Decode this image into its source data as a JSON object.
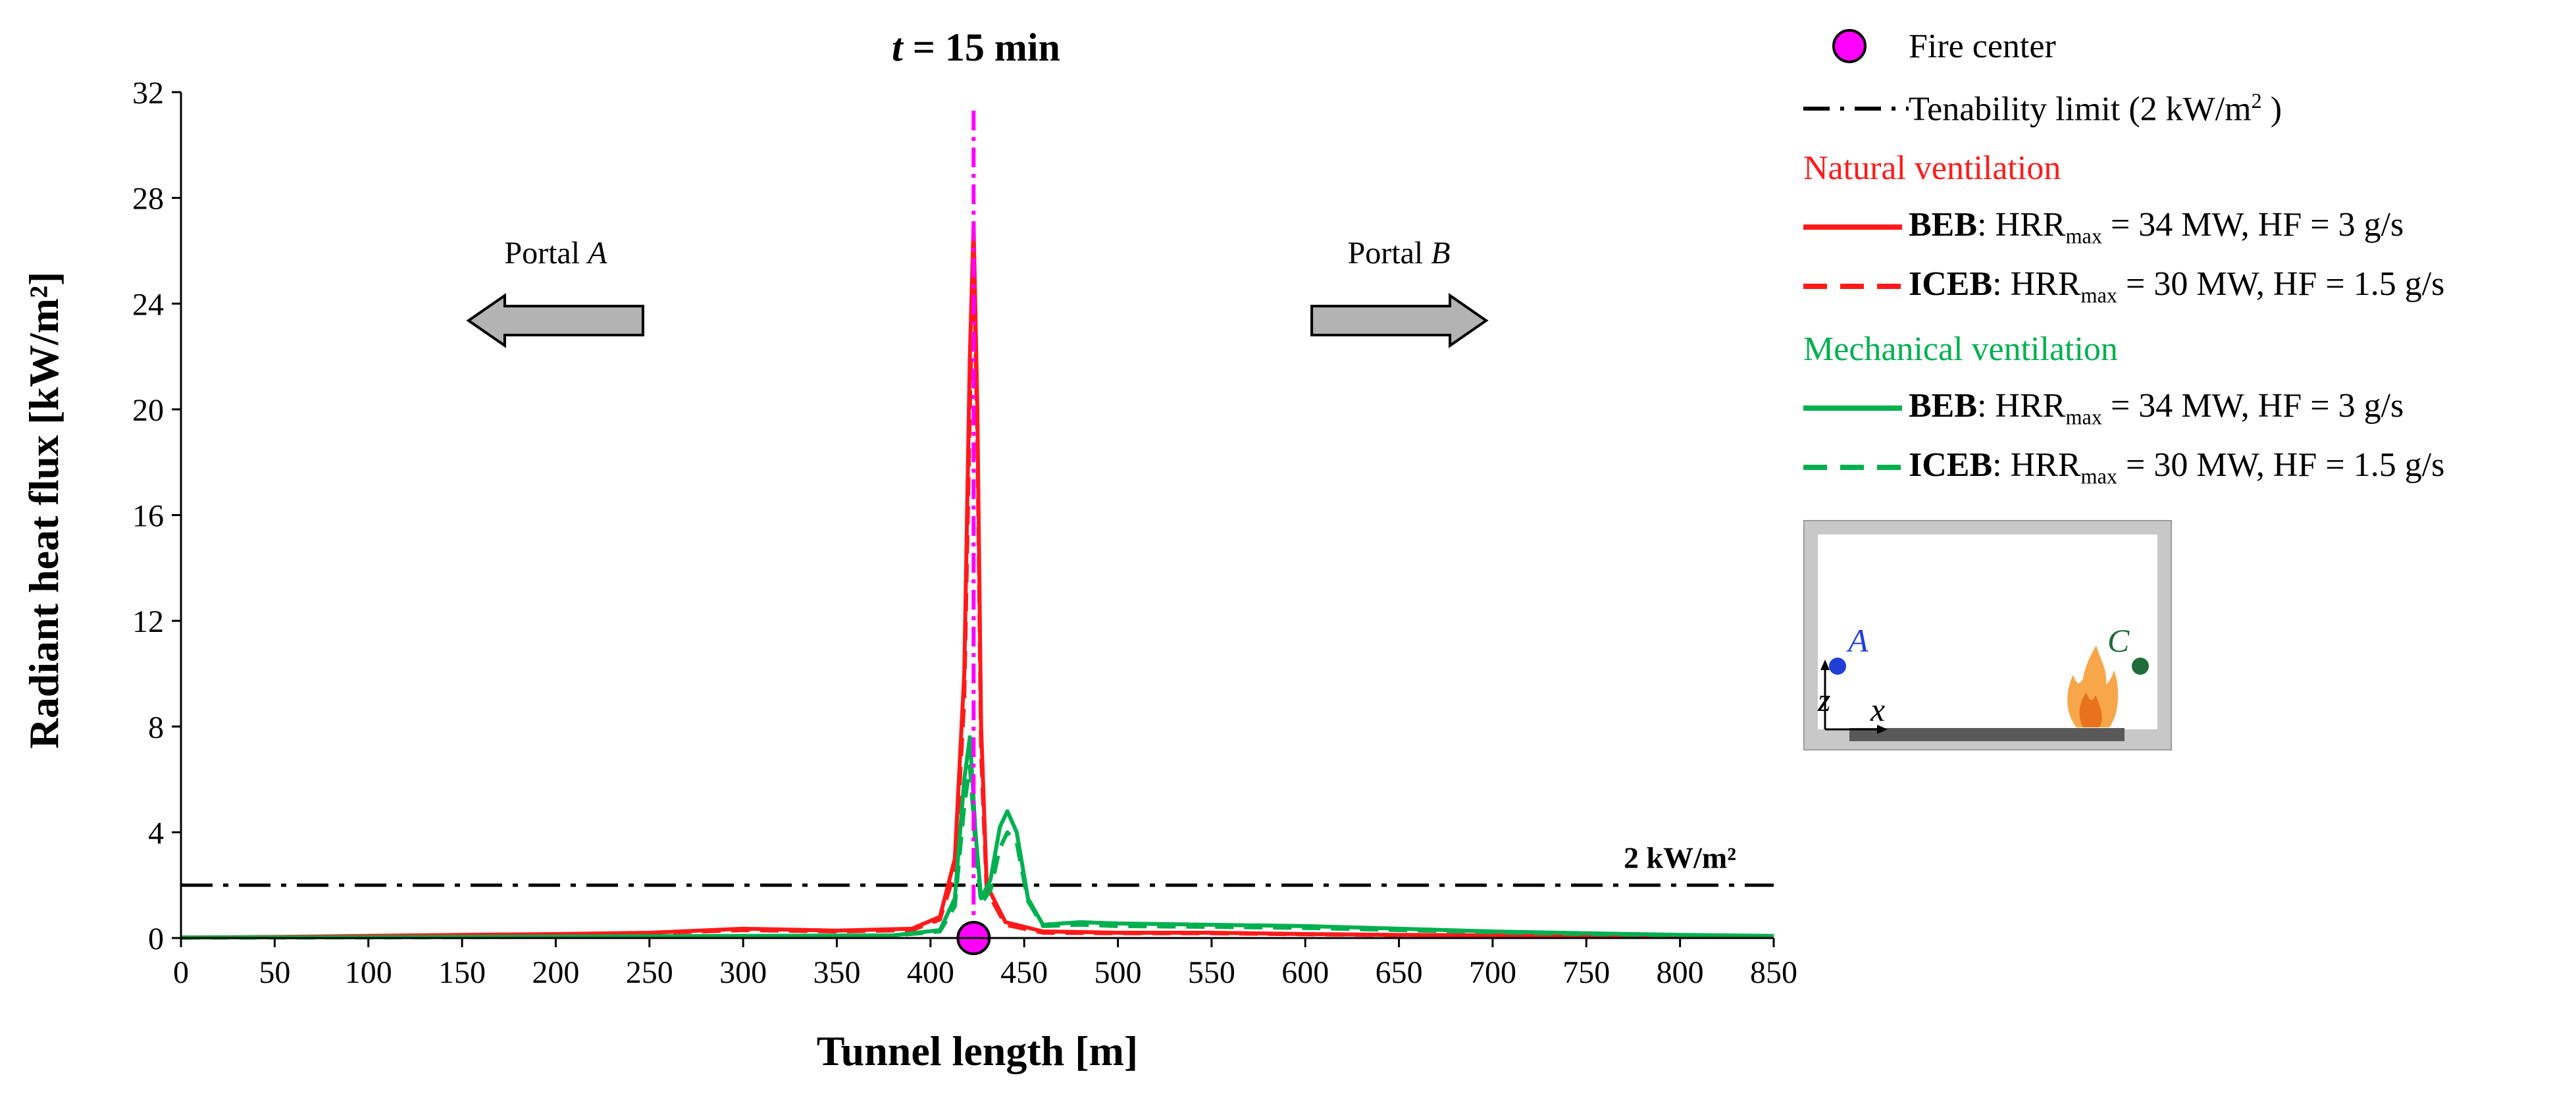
{
  "chart_data": {
    "type": "line",
    "title_italic": "t",
    "title_rest": " = 15 min",
    "xlabel": "Tunnel length [m]",
    "ylabel": "Radiant heat flux [kW/m²]",
    "xlim": [
      0,
      850
    ],
    "ylim": [
      0,
      32
    ],
    "xticks": [
      0,
      50,
      100,
      150,
      200,
      250,
      300,
      350,
      400,
      450,
      500,
      550,
      600,
      650,
      700,
      750,
      800,
      850
    ],
    "yticks": [
      0,
      4,
      8,
      12,
      16,
      20,
      24,
      28,
      32
    ],
    "tenability_limit": {
      "value": 2,
      "label": "2 kW/m²"
    },
    "fire_center": {
      "x": 423,
      "y": 0
    },
    "portals": [
      {
        "label": "Portal ",
        "italic": "A",
        "direction": "left",
        "x_center": 200
      },
      {
        "label": "Portal ",
        "italic": "B",
        "direction": "right",
        "x_center": 650
      }
    ],
    "series": [
      {
        "name": "Natural ventilation – BEB",
        "color": "#ff1a1a",
        "dash": "solid",
        "points": [
          [
            0,
            0.02
          ],
          [
            50,
            0.04
          ],
          [
            100,
            0.08
          ],
          [
            150,
            0.12
          ],
          [
            200,
            0.15
          ],
          [
            250,
            0.2
          ],
          [
            300,
            0.35
          ],
          [
            350,
            0.28
          ],
          [
            390,
            0.35
          ],
          [
            405,
            0.8
          ],
          [
            413,
            3
          ],
          [
            418,
            10
          ],
          [
            421,
            22
          ],
          [
            423,
            27
          ],
          [
            425,
            20
          ],
          [
            427,
            8
          ],
          [
            430,
            2
          ],
          [
            440,
            0.6
          ],
          [
            460,
            0.25
          ],
          [
            500,
            0.2
          ],
          [
            550,
            0.2
          ],
          [
            600,
            0.15
          ],
          [
            650,
            0.12
          ],
          [
            700,
            0.1
          ],
          [
            750,
            0.08
          ],
          [
            800,
            0.06
          ],
          [
            850,
            0.05
          ]
        ]
      },
      {
        "name": "Natural ventilation – ICEB",
        "color": "#ff1a1a",
        "dash": "dashed",
        "points": [
          [
            0,
            0.01
          ],
          [
            50,
            0.03
          ],
          [
            100,
            0.06
          ],
          [
            150,
            0.1
          ],
          [
            200,
            0.12
          ],
          [
            250,
            0.18
          ],
          [
            300,
            0.3
          ],
          [
            350,
            0.25
          ],
          [
            390,
            0.3
          ],
          [
            405,
            0.7
          ],
          [
            413,
            2.5
          ],
          [
            418,
            9
          ],
          [
            421,
            20
          ],
          [
            423,
            26
          ],
          [
            425,
            19
          ],
          [
            427,
            7
          ],
          [
            430,
            1.8
          ],
          [
            440,
            0.5
          ],
          [
            460,
            0.2
          ],
          [
            500,
            0.18
          ],
          [
            550,
            0.18
          ],
          [
            600,
            0.14
          ],
          [
            650,
            0.11
          ],
          [
            700,
            0.09
          ],
          [
            750,
            0.07
          ],
          [
            800,
            0.05
          ],
          [
            850,
            0.04
          ]
        ]
      },
      {
        "name": "Mechanical ventilation – BEB",
        "color": "#00b050",
        "dash": "solid",
        "points": [
          [
            0,
            0.02
          ],
          [
            100,
            0.03
          ],
          [
            200,
            0.05
          ],
          [
            300,
            0.08
          ],
          [
            380,
            0.1
          ],
          [
            405,
            0.3
          ],
          [
            413,
            1.5
          ],
          [
            418,
            6
          ],
          [
            421,
            7.6
          ],
          [
            424,
            4
          ],
          [
            427,
            1.5
          ],
          [
            432,
            2.2
          ],
          [
            437,
            4.2
          ],
          [
            441,
            4.8
          ],
          [
            446,
            4
          ],
          [
            452,
            1.5
          ],
          [
            460,
            0.5
          ],
          [
            480,
            0.6
          ],
          [
            500,
            0.55
          ],
          [
            550,
            0.5
          ],
          [
            600,
            0.45
          ],
          [
            650,
            0.35
          ],
          [
            700,
            0.25
          ],
          [
            750,
            0.18
          ],
          [
            800,
            0.12
          ],
          [
            850,
            0.08
          ]
        ]
      },
      {
        "name": "Mechanical ventilation – ICEB",
        "color": "#00b050",
        "dash": "dashed",
        "points": [
          [
            0,
            0.01
          ],
          [
            100,
            0.02
          ],
          [
            200,
            0.04
          ],
          [
            300,
            0.07
          ],
          [
            380,
            0.09
          ],
          [
            405,
            0.25
          ],
          [
            413,
            1.2
          ],
          [
            418,
            5
          ],
          [
            421,
            6.5
          ],
          [
            424,
            3.5
          ],
          [
            427,
            1.3
          ],
          [
            432,
            1.8
          ],
          [
            437,
            3.4
          ],
          [
            441,
            4
          ],
          [
            446,
            3.6
          ],
          [
            452,
            1.4
          ],
          [
            460,
            0.45
          ],
          [
            480,
            0.5
          ],
          [
            500,
            0.45
          ],
          [
            550,
            0.42
          ],
          [
            600,
            0.38
          ],
          [
            650,
            0.3
          ],
          [
            700,
            0.22
          ],
          [
            750,
            0.15
          ],
          [
            800,
            0.1
          ],
          [
            850,
            0.07
          ]
        ]
      }
    ]
  },
  "legend": {
    "fire_center": "Fire center",
    "tenability_pre": "Tenability limit (2 kW/m",
    "tenability_sup": "2",
    "tenability_post": " )",
    "natural_heading": "Natural ventilation",
    "mechanical_heading": "Mechanical ventilation",
    "beb_name": "BEB",
    "beb_pre": ": HRR",
    "beb_sub": "max",
    "beb_post": " = 34 MW, HF = 3 g/s",
    "iceb_name": "ICEB",
    "iceb_pre": ": HRR",
    "iceb_sub": "max",
    "iceb_post": " = 30 MW, HF = 1.5 g/s"
  },
  "inset": {
    "point_a": "A",
    "point_c": "C",
    "axis_z": "z",
    "axis_x": "x",
    "color_a": "#1f3fd6",
    "color_c": "#1f6b3a"
  },
  "colors": {
    "red": "#ff1a1a",
    "green": "#00b050",
    "fire_center": "#ff00ff",
    "arrow_fill": "#b3b3b3"
  }
}
